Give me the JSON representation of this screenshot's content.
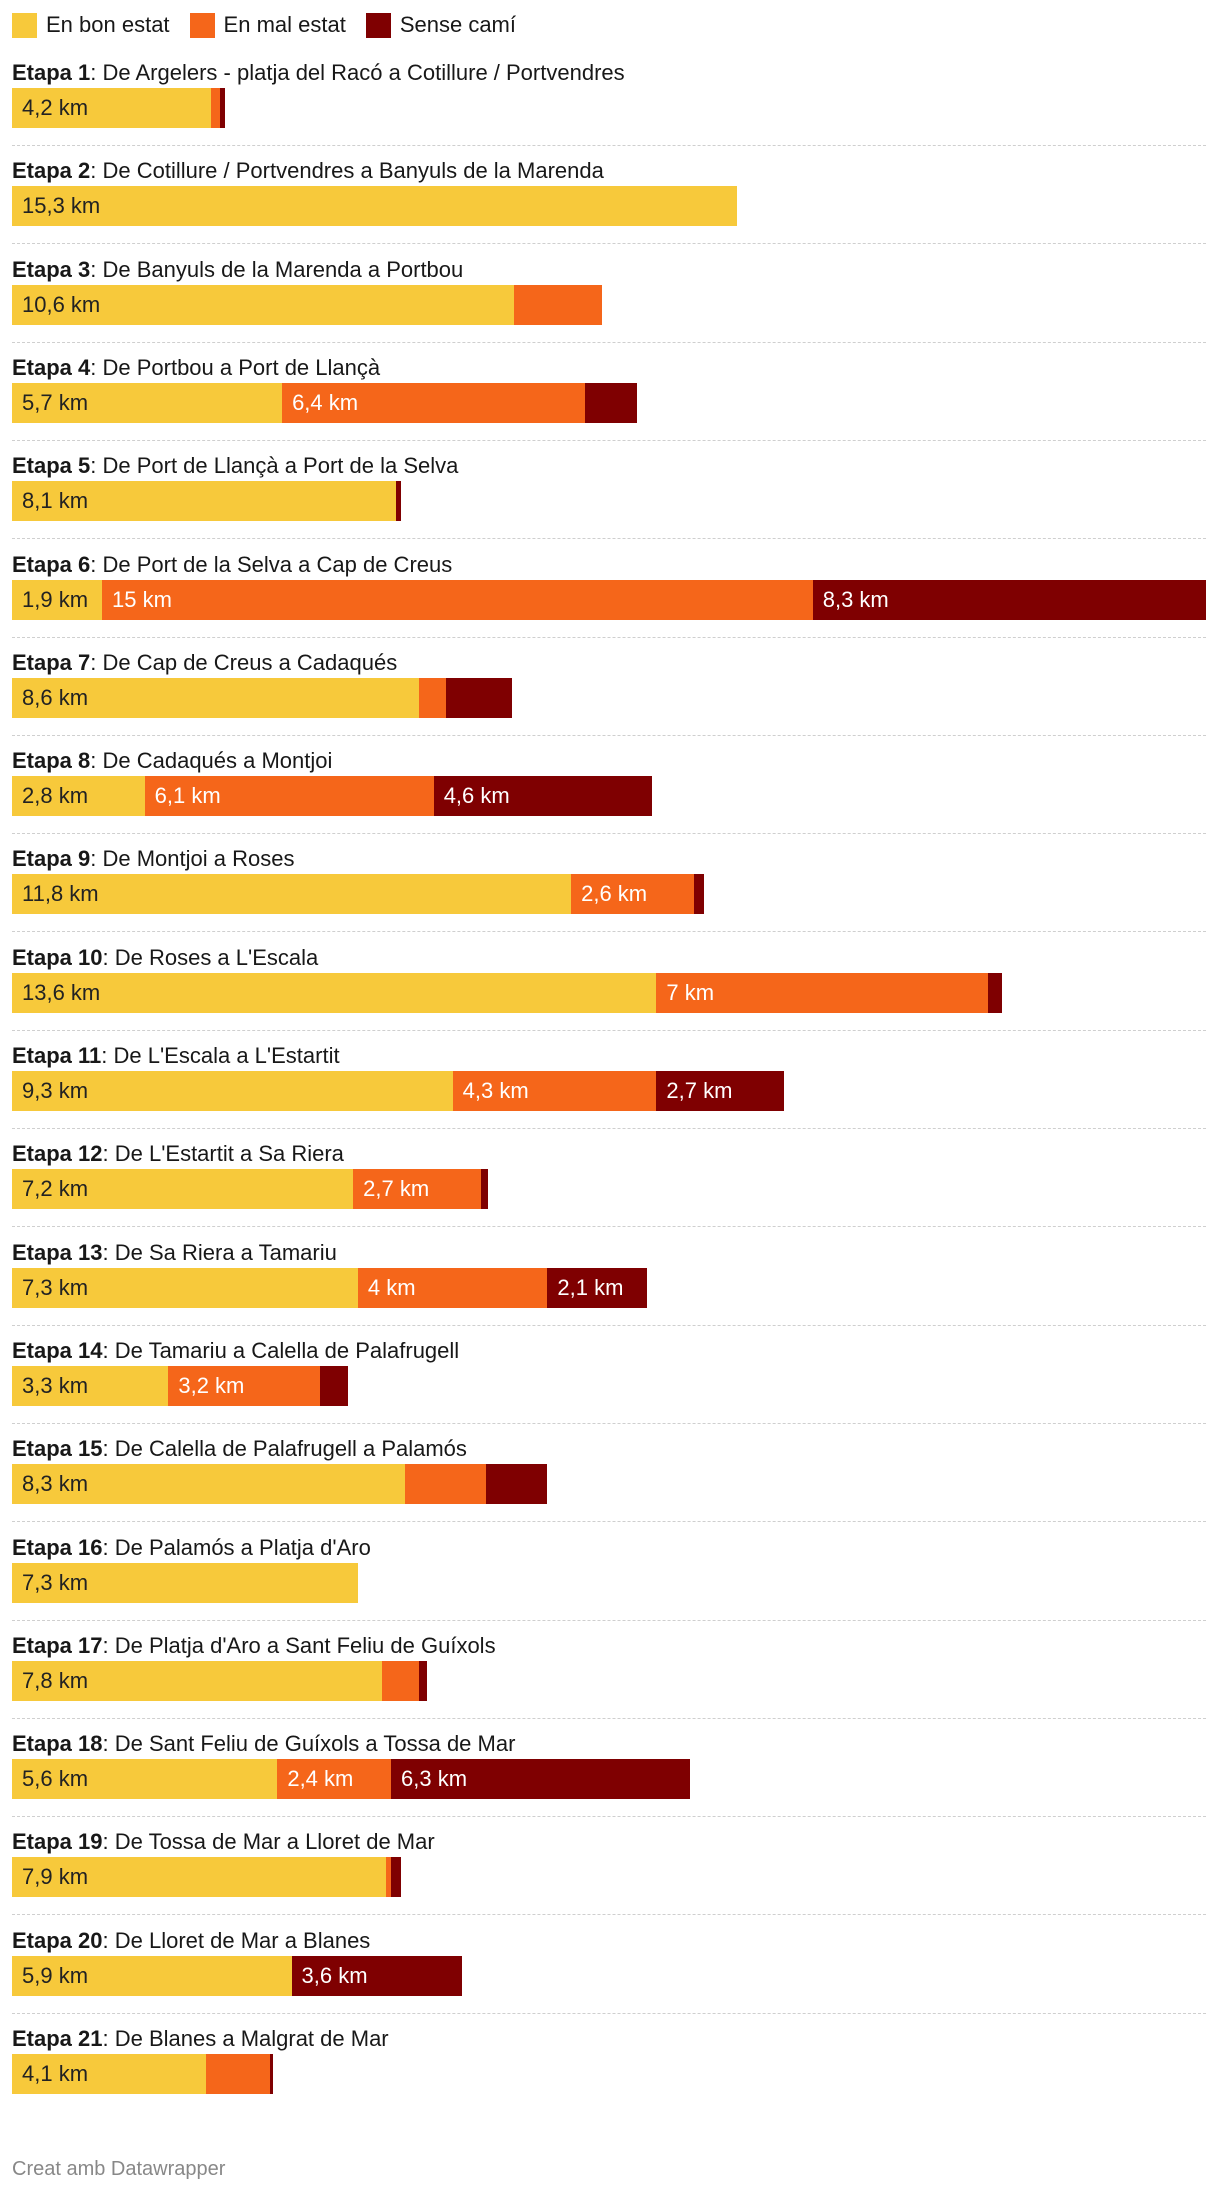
{
  "legend": [
    {
      "key": "good",
      "label": "En bon estat",
      "color": "#f7c93b"
    },
    {
      "key": "bad",
      "label": "En mal estat",
      "color": "#f5661a"
    },
    {
      "key": "none",
      "label": "Sense camí",
      "color": "#7f0001"
    }
  ],
  "chart_data": {
    "type": "stacked-bar",
    "orientation": "horizontal",
    "unit": "km",
    "xlim": [
      0,
      25.2
    ],
    "series_names": [
      "En bon estat",
      "En mal estat",
      "Sense camí"
    ],
    "rows": [
      {
        "stage": "Etapa 1",
        "route": ": De Argelers - platja del Racó a Cotillure / Portvendres",
        "values": [
          4.2,
          0.2,
          0.1
        ],
        "labels": [
          "4,2 km",
          "",
          ""
        ]
      },
      {
        "stage": "Etapa 2",
        "route": ": De Cotillure / Portvendres a Banyuls de la Marenda",
        "values": [
          15.3,
          0,
          0
        ],
        "labels": [
          "15,3 km",
          "",
          ""
        ]
      },
      {
        "stage": "Etapa 3",
        "route": ": De Banyuls de la Marenda a Portbou",
        "values": [
          10.6,
          1.85,
          0
        ],
        "labels": [
          "10,6 km",
          "",
          ""
        ]
      },
      {
        "stage": "Etapa 4",
        "route": ": De Portbou a Port de Llançà",
        "values": [
          5.7,
          6.4,
          1.1
        ],
        "labels": [
          "5,7 km",
          "6,4 km",
          ""
        ]
      },
      {
        "stage": "Etapa 5",
        "route": ": De Port de Llançà a Port de la Selva",
        "values": [
          8.1,
          0,
          0.1
        ],
        "labels": [
          "8,1 km",
          "",
          ""
        ]
      },
      {
        "stage": "Etapa 6",
        "route": ": De Port de la Selva a Cap de Creus",
        "values": [
          1.9,
          15,
          8.3
        ],
        "labels": [
          "1,9 km",
          "15 km",
          "8,3 km"
        ]
      },
      {
        "stage": "Etapa 7",
        "route": ": De Cap de Creus a Cadaqués",
        "values": [
          8.6,
          0.55,
          1.4
        ],
        "labels": [
          "8,6 km",
          "",
          ""
        ]
      },
      {
        "stage": "Etapa 8",
        "route": ": De Cadaqués a Montjoi",
        "values": [
          2.8,
          6.1,
          4.6
        ],
        "labels": [
          "2,8 km",
          "6,1 km",
          "4,6 km"
        ]
      },
      {
        "stage": "Etapa 9",
        "route": ": De Montjoi a Roses",
        "values": [
          11.8,
          2.6,
          0.2
        ],
        "labels": [
          "11,8 km",
          "2,6 km",
          ""
        ]
      },
      {
        "stage": "Etapa 10",
        "route": ": De Roses a L'Escala",
        "values": [
          13.6,
          7,
          0.3
        ],
        "labels": [
          "13,6 km",
          "7 km",
          ""
        ]
      },
      {
        "stage": "Etapa 11",
        "route": ": De L'Escala a L'Estartit",
        "values": [
          9.3,
          4.3,
          2.7
        ],
        "labels": [
          "9,3 km",
          "4,3 km",
          "2,7 km"
        ]
      },
      {
        "stage": "Etapa 12",
        "route": ": De L'Estartit a Sa Riera",
        "values": [
          7.2,
          2.7,
          0.15
        ],
        "labels": [
          "7,2 km",
          "2,7 km",
          ""
        ]
      },
      {
        "stage": "Etapa 13",
        "route": ": De Sa Riera a Tamariu",
        "values": [
          7.3,
          4,
          2.1
        ],
        "labels": [
          "7,3 km",
          "4 km",
          "2,1 km"
        ]
      },
      {
        "stage": "Etapa 14",
        "route": ": De Tamariu a Calella de Palafrugell",
        "values": [
          3.3,
          3.2,
          0.6
        ],
        "labels": [
          "3,3 km",
          "3,2 km",
          ""
        ]
      },
      {
        "stage": "Etapa 15",
        "route": ": De Calella de Palafrugell a Palamós",
        "values": [
          8.3,
          1.7,
          1.3
        ],
        "labels": [
          "8,3 km",
          "",
          ""
        ]
      },
      {
        "stage": "Etapa 16",
        "route": ": De Palamós a Platja d'Aro",
        "values": [
          7.3,
          0,
          0
        ],
        "labels": [
          "7,3 km",
          "",
          ""
        ]
      },
      {
        "stage": "Etapa 17",
        "route": ": De Platja d'Aro a Sant Feliu de Guíxols",
        "values": [
          7.8,
          0.8,
          0.15
        ],
        "labels": [
          "7,8 km",
          "",
          ""
        ]
      },
      {
        "stage": "Etapa 18",
        "route": ": De Sant Feliu de Guíxols a Tossa de Mar",
        "values": [
          5.6,
          2.4,
          6.3
        ],
        "labels": [
          "5,6 km",
          "2,4 km",
          "6,3 km"
        ]
      },
      {
        "stage": "Etapa 19",
        "route": ": De Tossa de Mar a Lloret de Mar",
        "values": [
          7.9,
          0.1,
          0.2
        ],
        "labels": [
          "7,9 km",
          "",
          ""
        ]
      },
      {
        "stage": "Etapa 20",
        "route": ": De Lloret de Mar a Blanes",
        "values": [
          5.9,
          0,
          3.6
        ],
        "labels": [
          "5,9 km",
          "",
          "3,6 km"
        ]
      },
      {
        "stage": "Etapa 21",
        "route": ": De Blanes a Malgrat de Mar",
        "values": [
          4.1,
          1.35,
          0.05
        ],
        "labels": [
          "4,1 km",
          "",
          ""
        ]
      }
    ]
  },
  "footer": "Creat amb Datawrapper"
}
